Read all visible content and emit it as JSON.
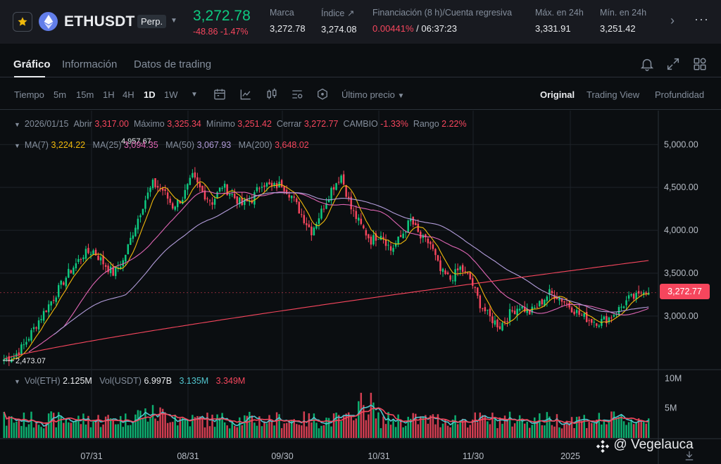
{
  "ticker": {
    "symbol": "ETHUSDT",
    "badge": "Perp.",
    "last_price": "3,272.78",
    "change": "-48.86 -1.47%",
    "stats": [
      {
        "label": "Marca",
        "value": "3,272.78"
      },
      {
        "label": "Índice ↗",
        "value": "3,274.08"
      },
      {
        "label": "Financiación (8 h)/Cuenta regresiva",
        "value_rate": "0.00441%",
        "value_rest": " / 06:37:23"
      },
      {
        "label": "Máx. en 24h",
        "value": "3,331.91"
      },
      {
        "label": "Mín. en 24h",
        "value": "3,251.42"
      }
    ]
  },
  "tabs": [
    {
      "label": "Gráfico",
      "active": true
    },
    {
      "label": "Información",
      "active": false
    },
    {
      "label": "Datos de trading",
      "active": false
    }
  ],
  "toolbar": {
    "time_label": "Tiempo",
    "intervals": [
      "5m",
      "15m",
      "1H",
      "4H",
      "1D",
      "1W"
    ],
    "active_interval": "1D",
    "price_type": "Último precio",
    "views": [
      "Original",
      "Trading View",
      "Profundidad"
    ],
    "active_view": "Original"
  },
  "ohlc": {
    "date": "2026/01/15",
    "open_label": "Abrir",
    "open": "3,317.00",
    "high_label": "Máximo",
    "high": "3,325.34",
    "low_label": "Mínimo",
    "low": "3,251.42",
    "close_label": "Cerrar",
    "close": "3,272.77",
    "change_label": "CAMBIO",
    "change": "-1.33%",
    "range_label": "Rango",
    "range": "2.22%"
  },
  "ma": {
    "ma7_label": "MA(7)",
    "ma7": "3,224.22",
    "ma25_label": "MA(25)",
    "ma25": "3,094.35",
    "ma50_label": "MA(50)",
    "ma50": "3,067.93",
    "ma200_label": "MA(200)",
    "ma200": "3,648.02"
  },
  "volume": {
    "eth_label": "Vol(ETH)",
    "eth": "2.125M",
    "usdt_label": "Vol(USDT)",
    "usdt": "6.997B",
    "v1": "3.135M",
    "v2": "3.349M"
  },
  "chart_data": {
    "type": "candlestick",
    "price_axis_ticks": [
      "5,000.00",
      "4,500.00",
      "4,000.00",
      "3,500.00",
      "3,000.00"
    ],
    "volume_axis_ticks": [
      "10M",
      "5M"
    ],
    "x_tick_labels": [
      "07/31",
      "08/31",
      "09/30",
      "10/31",
      "11/30",
      "2025"
    ],
    "y_range": [
      2400,
      5150
    ],
    "annotations": {
      "high": "4,957.67",
      "low": "2,473.07"
    },
    "current_price": "3,272.77",
    "colors": {
      "up": "#0ecb81",
      "down": "#f6465d",
      "ma7": "#f0b90b",
      "ma25": "#e066b5",
      "ma50": "#b39ddb",
      "ma200": "#f6465d",
      "vol_ma1": "#51c5ce",
      "vol_ma2": "#f6465d"
    },
    "price_keypoints": [
      [
        0,
        2500
      ],
      [
        4,
        2530
      ],
      [
        8,
        2660
      ],
      [
        14,
        2950
      ],
      [
        20,
        3220
      ],
      [
        26,
        3500
      ],
      [
        32,
        3720
      ],
      [
        36,
        3760
      ],
      [
        40,
        3620
      ],
      [
        44,
        3500
      ],
      [
        48,
        3640
      ],
      [
        52,
        3980
      ],
      [
        56,
        4300
      ],
      [
        60,
        4540
      ],
      [
        64,
        4470
      ],
      [
        68,
        4280
      ],
      [
        72,
        4380
      ],
      [
        76,
        4620
      ],
      [
        80,
        4440
      ],
      [
        84,
        4330
      ],
      [
        88,
        4520
      ],
      [
        92,
        4410
      ],
      [
        96,
        4300
      ],
      [
        100,
        4360
      ],
      [
        104,
        4560
      ],
      [
        108,
        4500
      ],
      [
        112,
        4540
      ],
      [
        116,
        4400
      ],
      [
        120,
        4180
      ],
      [
        124,
        3990
      ],
      [
        128,
        4220
      ],
      [
        132,
        4480
      ],
      [
        136,
        4640
      ],
      [
        140,
        4250
      ],
      [
        144,
        4050
      ],
      [
        148,
        3880
      ],
      [
        152,
        3970
      ],
      [
        156,
        3770
      ],
      [
        160,
        3920
      ],
      [
        164,
        4120
      ],
      [
        168,
        3910
      ],
      [
        172,
        3840
      ],
      [
        176,
        3520
      ],
      [
        180,
        3430
      ],
      [
        184,
        3560
      ],
      [
        188,
        3430
      ],
      [
        192,
        3140
      ],
      [
        196,
        2980
      ],
      [
        200,
        2880
      ],
      [
        204,
        3030
      ],
      [
        208,
        3120
      ],
      [
        212,
        3040
      ],
      [
        216,
        3140
      ],
      [
        220,
        3270
      ],
      [
        224,
        3220
      ],
      [
        228,
        3120
      ],
      [
        232,
        3020
      ],
      [
        236,
        2960
      ],
      [
        240,
        2930
      ],
      [
        244,
        2980
      ],
      [
        248,
        3080
      ],
      [
        252,
        3200
      ],
      [
        256,
        3230
      ],
      [
        258,
        3320
      ],
      [
        260,
        3273
      ]
    ],
    "volume_base": 3.2
  },
  "watermark": "@ Vegelauca"
}
